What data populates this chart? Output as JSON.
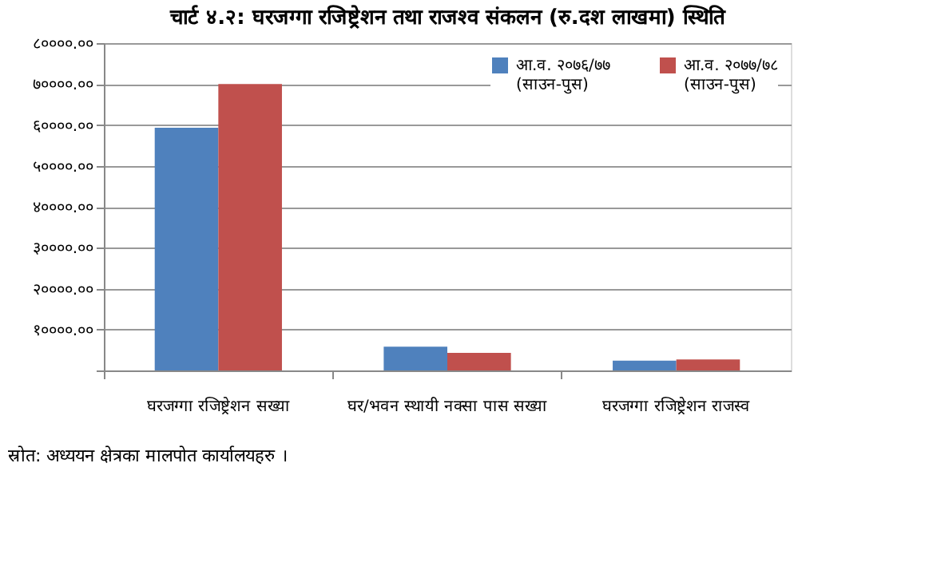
{
  "chart_data": {
    "type": "bar",
    "title": "चार्ट ४.२: घरजग्गा रजिष्ट्रेशन तथा राजश्व संकलन (रु.दश लाखमा) स्थिति",
    "categories": [
      "घरजग्गा रजिष्ट्रेशन सख्या",
      "घर/भवन स्थायी नक्सा पास सख्या",
      "घरजग्गा रजिष्ट्रेशन राजस्व"
    ],
    "series": [
      {
        "name": "आ.व. २०७६/७७\n(साउन-पुस)",
        "color": "#4f81bd",
        "values": [
          59300,
          5800,
          2400
        ]
      },
      {
        "name": "आ.व. २०७७/७८\n(साउन-पुस)",
        "color": "#c0504d",
        "values": [
          70000,
          4300,
          2700
        ]
      }
    ],
    "ylim": [
      0,
      80000
    ],
    "yticks": [
      {
        "value": 0,
        "label": null
      },
      {
        "value": 10000,
        "label": "१००००.००"
      },
      {
        "value": 20000,
        "label": "२००००.००"
      },
      {
        "value": 30000,
        "label": "३००००.००"
      },
      {
        "value": 40000,
        "label": "४००००.००"
      },
      {
        "value": 50000,
        "label": "५००००.००"
      },
      {
        "value": 60000,
        "label": "६००००.००"
      },
      {
        "value": 70000,
        "label": "७००००.००"
      },
      {
        "value": 80000,
        "label": "८००००.००"
      }
    ],
    "grid": "y",
    "legend": "top right",
    "annotations": [
      "स्रोत: अध्ययन क्षेत्रका मालपोत कार्यालयहरु ।"
    ]
  }
}
